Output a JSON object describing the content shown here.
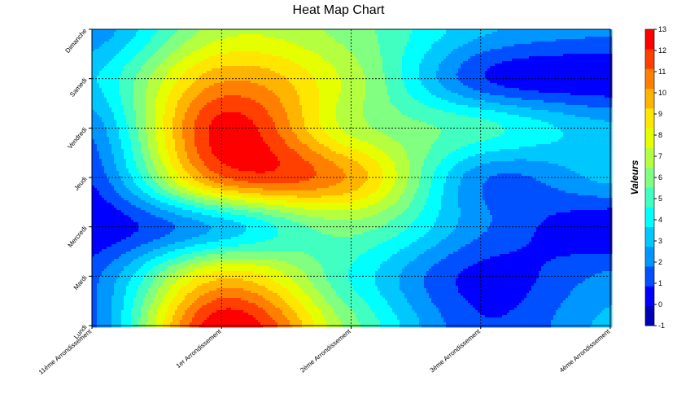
{
  "chart_data": {
    "type": "heatmap",
    "title": "Heat Map Chart",
    "x_categories": [
      "11ème Arrondissement",
      "1er Arrondissement",
      "2ème Arrondissement",
      "3ème Arrondissement",
      "4ème Arrondissement"
    ],
    "y_categories": [
      "Lundi",
      "Mardi",
      "Mercredi",
      "Jeudi",
      "Vendredi",
      "Samedi",
      "Dimanche"
    ],
    "values": [
      [
        1.5,
        13.0,
        6.0,
        1.0,
        3.0
      ],
      [
        1.5,
        9.0,
        4.5,
        0.5,
        2.0
      ],
      [
        0.0,
        3.0,
        6.0,
        2.0,
        0.0
      ],
      [
        1.0,
        11.0,
        10.0,
        2.0,
        3.0
      ],
      [
        2.0,
        12.5,
        7.0,
        5.0,
        3.0
      ],
      [
        3.5,
        10.0,
        7.0,
        1.0,
        0.0
      ],
      [
        2.0,
        7.0,
        6.0,
        3.0,
        2.0
      ]
    ],
    "colorbar": {
      "label": "Valeurs",
      "min": -1,
      "max": 13,
      "ticks": [
        -1,
        0,
        1,
        2,
        3,
        4,
        5,
        6,
        7,
        8,
        9,
        10,
        11,
        12,
        13
      ]
    },
    "colors": [
      "#0000b4",
      "#0000ff",
      "#0050ff",
      "#0096ff",
      "#00c8ff",
      "#00ffff",
      "#40ffc0",
      "#80ff80",
      "#b4ff40",
      "#e6ff00",
      "#ffe600",
      "#ffb400",
      "#ff8000",
      "#ff4000",
      "#ff0000"
    ],
    "grid": true
  }
}
